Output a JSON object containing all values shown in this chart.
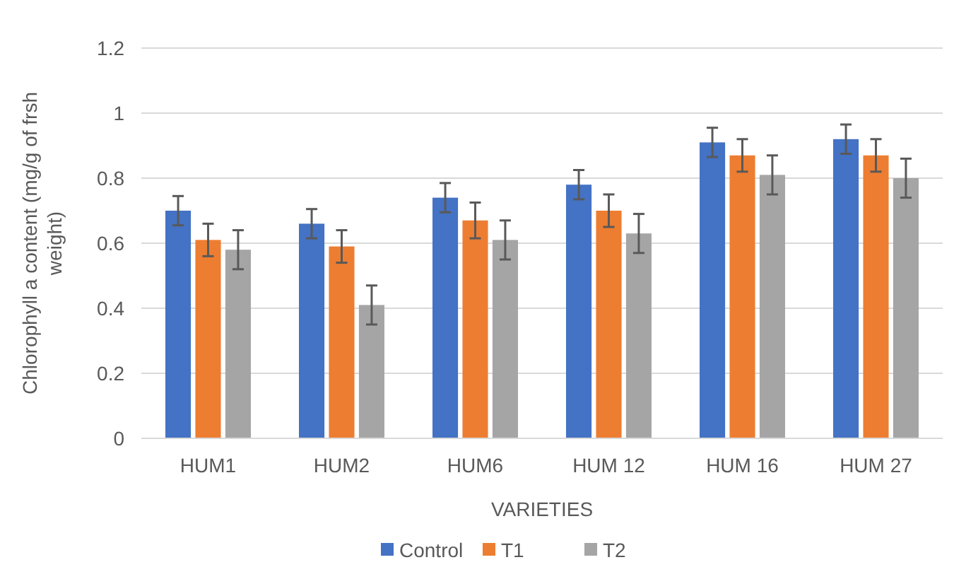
{
  "chart_data": {
    "type": "bar",
    "xlabel": "VARIETIES",
    "ylabel": "Chlorophyll a content (mg/g of frsh weight)",
    "categories": [
      "HUM1",
      "HUM2",
      "HUM6",
      "HUM 12",
      "HUM 16",
      "HUM 27"
    ],
    "series": [
      {
        "name": "Control",
        "color": "#4472c4",
        "values": [
          0.7,
          0.66,
          0.74,
          0.78,
          0.91,
          0.92
        ],
        "errors": [
          0.045,
          0.045,
          0.045,
          0.045,
          0.045,
          0.045
        ]
      },
      {
        "name": "T1",
        "color": "#ed7d31",
        "values": [
          0.61,
          0.59,
          0.67,
          0.7,
          0.87,
          0.87
        ],
        "errors": [
          0.05,
          0.05,
          0.055,
          0.05,
          0.05,
          0.05
        ]
      },
      {
        "name": "T2",
        "color": "#a5a5a5",
        "values": [
          0.58,
          0.41,
          0.61,
          0.63,
          0.81,
          0.8
        ],
        "errors": [
          0.06,
          0.06,
          0.06,
          0.06,
          0.06,
          0.06
        ]
      }
    ],
    "ylim": [
      0,
      1.2
    ],
    "yticks": [
      0,
      0.2,
      0.4,
      0.6,
      0.8,
      1,
      1.2
    ],
    "grid": "y",
    "legend": "bottom"
  }
}
